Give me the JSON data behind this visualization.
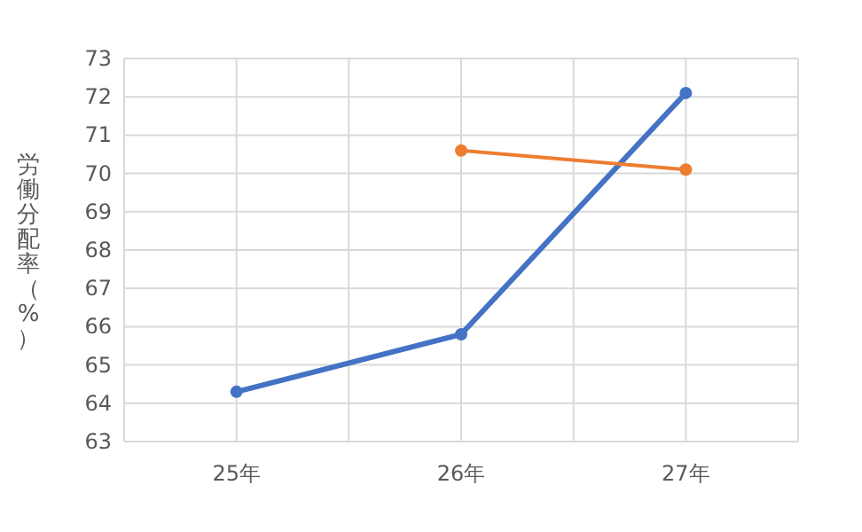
{
  "chart_data": {
    "type": "line",
    "ylabel": "労働分配率（%）",
    "categories": [
      "25年",
      "26年",
      "27年"
    ],
    "series": [
      {
        "color": "#4472c4",
        "values": [
          64.3,
          65.8,
          72.1
        ]
      },
      {
        "color": "#ed7d31",
        "values": [
          null,
          70.6,
          70.1
        ]
      }
    ],
    "ylim": [
      63,
      73
    ],
    "yticks": [
      63,
      64,
      65,
      66,
      67,
      68,
      69,
      70,
      71,
      72,
      73
    ],
    "grid": true,
    "marker": "circle",
    "line_style": "solid"
  }
}
